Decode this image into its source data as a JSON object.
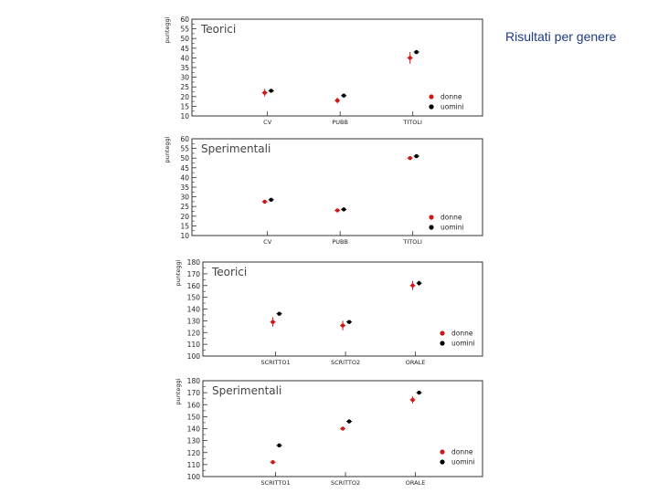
{
  "slide": {
    "title": "Risultati per genere"
  },
  "chart_data": [
    {
      "type": "scatter",
      "title": "Teorici",
      "ylabel": "punteggi",
      "ylim": [
        10,
        60
      ],
      "yticks": [
        10,
        15,
        20,
        25,
        30,
        35,
        40,
        45,
        50,
        55,
        60
      ],
      "categories": [
        "CV",
        "PUBB",
        "TITOLI"
      ],
      "series": [
        {
          "name": "donne",
          "color": "#cc1a1a",
          "values": [
            22,
            18,
            40
          ],
          "errors": [
            2,
            1.5,
            3
          ]
        },
        {
          "name": "uomini",
          "color": "#000000",
          "values": [
            23,
            20.5,
            43
          ],
          "errors": [
            0.5,
            0.5,
            1
          ]
        }
      ]
    },
    {
      "type": "scatter",
      "title": "Sperimentali",
      "ylabel": "punteggi",
      "ylim": [
        10,
        60
      ],
      "yticks": [
        10,
        15,
        20,
        25,
        30,
        35,
        40,
        45,
        50,
        55,
        60
      ],
      "categories": [
        "CV",
        "PUBB",
        "TITOLI"
      ],
      "series": [
        {
          "name": "donne",
          "color": "#cc1a1a",
          "values": [
            27.5,
            23,
            50
          ],
          "errors": [
            0.5,
            0.5,
            0.5
          ]
        },
        {
          "name": "uomini",
          "color": "#000000",
          "values": [
            28.5,
            23.5,
            51
          ],
          "errors": [
            0.5,
            0.5,
            0.5
          ]
        }
      ]
    },
    {
      "type": "scatter",
      "title": "Teorici",
      "ylabel": "punteggi",
      "ylim": [
        100,
        180
      ],
      "yticks": [
        100,
        110,
        120,
        130,
        140,
        150,
        160,
        170,
        180
      ],
      "categories": [
        "SCRITTO1",
        "SCRITTO2",
        "ORALE"
      ],
      "series": [
        {
          "name": "donne",
          "color": "#cc1a1a",
          "values": [
            129,
            126,
            160
          ],
          "errors": [
            4,
            4,
            4
          ]
        },
        {
          "name": "uomini",
          "color": "#000000",
          "values": [
            136,
            129,
            162
          ],
          "errors": [
            1,
            1,
            2
          ]
        }
      ]
    },
    {
      "type": "scatter",
      "title": "Sperimentali",
      "ylabel": "punteggi",
      "ylim": [
        100,
        180
      ],
      "yticks": [
        100,
        110,
        120,
        130,
        140,
        150,
        160,
        170,
        180
      ],
      "categories": [
        "SCRITTO1",
        "SCRITTO2",
        "ORALE"
      ],
      "series": [
        {
          "name": "donne",
          "color": "#cc1a1a",
          "values": [
            112,
            140,
            164
          ],
          "errors": [
            1,
            1,
            3
          ]
        },
        {
          "name": "uomini",
          "color": "#000000",
          "values": [
            126,
            146,
            170
          ],
          "errors": [
            1,
            1,
            1
          ]
        }
      ]
    }
  ]
}
